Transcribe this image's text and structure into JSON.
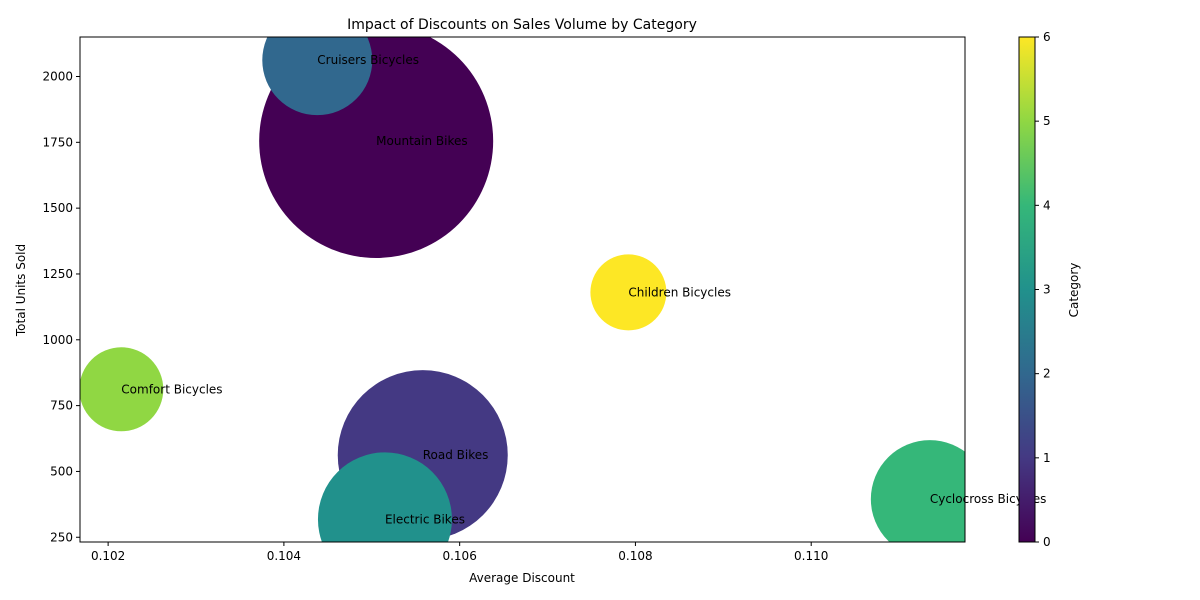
{
  "chart_data": {
    "type": "scatter",
    "title": "Impact of Discounts on Sales Volume by Category",
    "xlabel": "Average Discount",
    "ylabel": "Total Units Sold",
    "xlim": [
      0.10168,
      0.11175
    ],
    "ylim": [
      232,
      2150
    ],
    "x_ticks": [
      0.102,
      0.104,
      0.106,
      0.108,
      0.11
    ],
    "x_tick_labels": [
      "0.102",
      "0.104",
      "0.106",
      "0.108",
      "0.110"
    ],
    "y_ticks": [
      250,
      500,
      750,
      1000,
      1250,
      1500,
      1750,
      2000
    ],
    "y_tick_labels": [
      "250",
      "500",
      "750",
      "1000",
      "1250",
      "1500",
      "1750",
      "2000"
    ],
    "grid": false,
    "colormap": "viridis",
    "colorbar": {
      "label": "Category",
      "min": 0,
      "max": 6,
      "ticks": [
        0,
        1,
        2,
        3,
        4,
        5,
        6
      ],
      "tick_labels": [
        "0",
        "1",
        "2",
        "3",
        "4",
        "5",
        "6"
      ]
    },
    "points": [
      {
        "label": "Mountain Bikes",
        "x": 0.10505,
        "y": 1755,
        "category": 0,
        "size": 117
      },
      {
        "label": "Road Bikes",
        "x": 0.10558,
        "y": 562,
        "category": 1,
        "size": 85
      },
      {
        "label": "Cruisers Bicycles",
        "x": 0.10438,
        "y": 2062,
        "category": 2,
        "size": 55
      },
      {
        "label": "Electric Bikes",
        "x": 0.10515,
        "y": 318,
        "category": 3,
        "size": 67
      },
      {
        "label": "Cyclocross Bicycles",
        "x": 0.11135,
        "y": 395,
        "category": 4,
        "size": 59
      },
      {
        "label": "Comfort Bicycles",
        "x": 0.10215,
        "y": 812,
        "category": 5,
        "size": 42
      },
      {
        "label": "Children Bicycles",
        "x": 0.10792,
        "y": 1180,
        "category": 6,
        "size": 38
      }
    ]
  }
}
